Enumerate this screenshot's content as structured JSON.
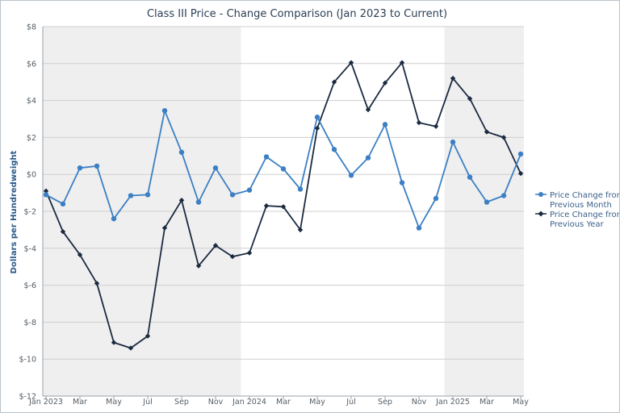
{
  "chart_data": {
    "type": "line",
    "title": "Class III Price - Change Comparison (Jan 2023 to Current)",
    "xlabel": "",
    "ylabel": "Dollars per Hundredweight",
    "ylim": [
      -12,
      8
    ],
    "y_ticks": [
      "$-12",
      "$-10",
      "$-8",
      "$-6",
      "$-4",
      "$-2",
      "$0",
      "$2",
      "$4",
      "$6",
      "$8"
    ],
    "y_tick_values": [
      -12,
      -10,
      -8,
      -6,
      -4,
      -2,
      0,
      2,
      4,
      6,
      8
    ],
    "categories": [
      "Jan 2023",
      "Feb 2023",
      "Mar 2023",
      "Apr 2023",
      "May 2023",
      "Jun 2023",
      "Jul 2023",
      "Aug 2023",
      "Sep 2023",
      "Oct 2023",
      "Nov 2023",
      "Dec 2023",
      "Jan 2024",
      "Feb 2024",
      "Mar 2024",
      "Apr 2024",
      "May 2024",
      "Jun 2024",
      "Jul 2024",
      "Aug 2024",
      "Sep 2024",
      "Oct 2024",
      "Nov 2024",
      "Dec 2024",
      "Jan 2025",
      "Feb 2025",
      "Mar 2025",
      "Apr 2025",
      "May 2025"
    ],
    "x_tick_labels": [
      {
        "index": 0,
        "label": "Jan 2023"
      },
      {
        "index": 2,
        "label": "Mar"
      },
      {
        "index": 4,
        "label": "May"
      },
      {
        "index": 6,
        "label": "Jul"
      },
      {
        "index": 8,
        "label": "Sep"
      },
      {
        "index": 10,
        "label": "Nov"
      },
      {
        "index": 12,
        "label": "Jan 2024"
      },
      {
        "index": 14,
        "label": "Mar"
      },
      {
        "index": 16,
        "label": "May"
      },
      {
        "index": 18,
        "label": "Jul"
      },
      {
        "index": 20,
        "label": "Sep"
      },
      {
        "index": 22,
        "label": "Nov"
      },
      {
        "index": 24,
        "label": "Jan 2025"
      },
      {
        "index": 26,
        "label": "Mar"
      },
      {
        "index": 28,
        "label": "May"
      }
    ],
    "shaded_years": [
      {
        "from": "Jan 2023",
        "to": "Dec 2023"
      },
      {
        "from": "Jan 2025",
        "to": "May 2025"
      }
    ],
    "grid": true,
    "legend_position": "right",
    "series": [
      {
        "name": "Price Change from Previous Month",
        "color": "#3b7fc4",
        "marker": "circle",
        "values": [
          -1.1,
          -1.6,
          0.35,
          0.45,
          -2.4,
          -1.15,
          -1.1,
          3.45,
          1.2,
          -1.5,
          0.35,
          -1.1,
          -0.85,
          0.95,
          0.3,
          -0.8,
          3.1,
          1.35,
          -0.05,
          0.9,
          2.7,
          -0.45,
          -2.9,
          -1.3,
          1.75,
          -0.15,
          -1.5,
          -1.15,
          1.1
        ]
      },
      {
        "name": "Price Change from Previous Year",
        "color": "#1a2a40",
        "marker": "diamond",
        "values": [
          -0.9,
          -3.1,
          -4.35,
          -5.9,
          -9.1,
          -9.4,
          -8.75,
          -2.9,
          -1.4,
          -4.95,
          -3.85,
          -4.45,
          -4.25,
          -1.7,
          -1.75,
          -3.0,
          2.5,
          5.0,
          6.05,
          3.5,
          4.95,
          6.05,
          2.8,
          2.6,
          5.2,
          4.1,
          2.3,
          2.0,
          0.05
        ]
      }
    ]
  },
  "legend": {
    "month_line1": "Price Change from",
    "month_line2": "Previous Month",
    "year_line1": "Price Change from",
    "year_line2": "Previous Year"
  }
}
